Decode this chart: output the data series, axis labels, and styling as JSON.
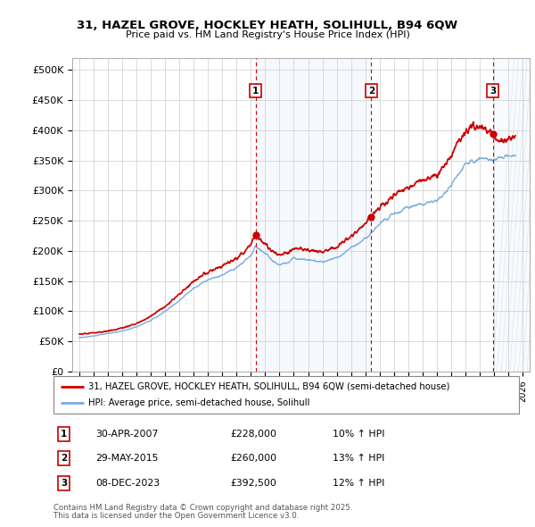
{
  "title1": "31, HAZEL GROVE, HOCKLEY HEATH, SOLIHULL, B94 6QW",
  "title2": "Price paid vs. HM Land Registry's House Price Index (HPI)",
  "legend_property": "31, HAZEL GROVE, HOCKLEY HEATH, SOLIHULL, B94 6QW (semi-detached house)",
  "legend_hpi": "HPI: Average price, semi-detached house, Solihull",
  "footer1": "Contains HM Land Registry data © Crown copyright and database right 2025.",
  "footer2": "This data is licensed under the Open Government Licence v3.0.",
  "property_color": "#cc0000",
  "hpi_color": "#7aade0",
  "hpi_fill_color": "#c8ddf0",
  "annotation_color": "#cc0000",
  "sale_markers": [
    {
      "num": 1,
      "date": "30-APR-2007",
      "price": 228000,
      "x": 2007.33,
      "hpi_pct": "10%"
    },
    {
      "num": 2,
      "date": "29-MAY-2015",
      "price": 260000,
      "x": 2015.42,
      "hpi_pct": "13%"
    },
    {
      "num": 3,
      "date": "08-DEC-2023",
      "price": 392500,
      "x": 2023.92,
      "hpi_pct": "12%"
    }
  ],
  "ylim": [
    0,
    520000
  ],
  "xlim": [
    1994.5,
    2026.5
  ],
  "yticks": [
    0,
    50000,
    100000,
    150000,
    200000,
    250000,
    300000,
    350000,
    400000,
    450000,
    500000
  ],
  "ytick_labels": [
    "£0",
    "£50K",
    "£100K",
    "£150K",
    "£200K",
    "£250K",
    "£300K",
    "£350K",
    "£400K",
    "£450K",
    "£500K"
  ],
  "hpi_anchors": [
    [
      1995.0,
      56000
    ],
    [
      1996.0,
      59000
    ],
    [
      1997.0,
      63000
    ],
    [
      1998.0,
      67000
    ],
    [
      1999.0,
      74000
    ],
    [
      2000.0,
      85000
    ],
    [
      2001.0,
      100000
    ],
    [
      2002.0,
      118000
    ],
    [
      2003.0,
      138000
    ],
    [
      2004.0,
      152000
    ],
    [
      2005.0,
      160000
    ],
    [
      2006.0,
      172000
    ],
    [
      2007.0,
      192000
    ],
    [
      2007.33,
      207000
    ],
    [
      2008.0,
      197000
    ],
    [
      2008.5,
      183000
    ],
    [
      2009.0,
      178000
    ],
    [
      2009.5,
      180000
    ],
    [
      2010.0,
      188000
    ],
    [
      2011.0,
      185000
    ],
    [
      2012.0,
      182000
    ],
    [
      2013.0,
      188000
    ],
    [
      2014.0,
      205000
    ],
    [
      2015.0,
      220000
    ],
    [
      2015.42,
      230000
    ],
    [
      2016.0,
      245000
    ],
    [
      2017.0,
      262000
    ],
    [
      2018.0,
      272000
    ],
    [
      2019.0,
      278000
    ],
    [
      2020.0,
      282000
    ],
    [
      2021.0,
      308000
    ],
    [
      2022.0,
      345000
    ],
    [
      2023.0,
      352000
    ],
    [
      2023.92,
      350000
    ],
    [
      2024.5,
      355000
    ],
    [
      2025.5,
      358000
    ]
  ],
  "prop_anchors": [
    [
      1995.0,
      62000
    ],
    [
      1996.0,
      64000
    ],
    [
      1997.0,
      67000
    ],
    [
      1998.0,
      72000
    ],
    [
      1999.0,
      79000
    ],
    [
      2000.0,
      92000
    ],
    [
      2001.0,
      108000
    ],
    [
      2002.0,
      128000
    ],
    [
      2003.0,
      150000
    ],
    [
      2004.0,
      165000
    ],
    [
      2005.0,
      175000
    ],
    [
      2006.0,
      188000
    ],
    [
      2007.0,
      210000
    ],
    [
      2007.33,
      228000
    ],
    [
      2008.0,
      212000
    ],
    [
      2008.5,
      198000
    ],
    [
      2009.0,
      193000
    ],
    [
      2009.5,
      196000
    ],
    [
      2010.0,
      205000
    ],
    [
      2011.0,
      202000
    ],
    [
      2012.0,
      198000
    ],
    [
      2013.0,
      206000
    ],
    [
      2014.0,
      225000
    ],
    [
      2015.0,
      245000
    ],
    [
      2015.42,
      260000
    ],
    [
      2016.0,
      272000
    ],
    [
      2017.0,
      292000
    ],
    [
      2018.0,
      305000
    ],
    [
      2019.0,
      318000
    ],
    [
      2020.0,
      325000
    ],
    [
      2021.0,
      358000
    ],
    [
      2022.0,
      400000
    ],
    [
      2023.0,
      408000
    ],
    [
      2023.92,
      392500
    ],
    [
      2024.2,
      388000
    ],
    [
      2024.8,
      382000
    ],
    [
      2025.5,
      390000
    ]
  ]
}
